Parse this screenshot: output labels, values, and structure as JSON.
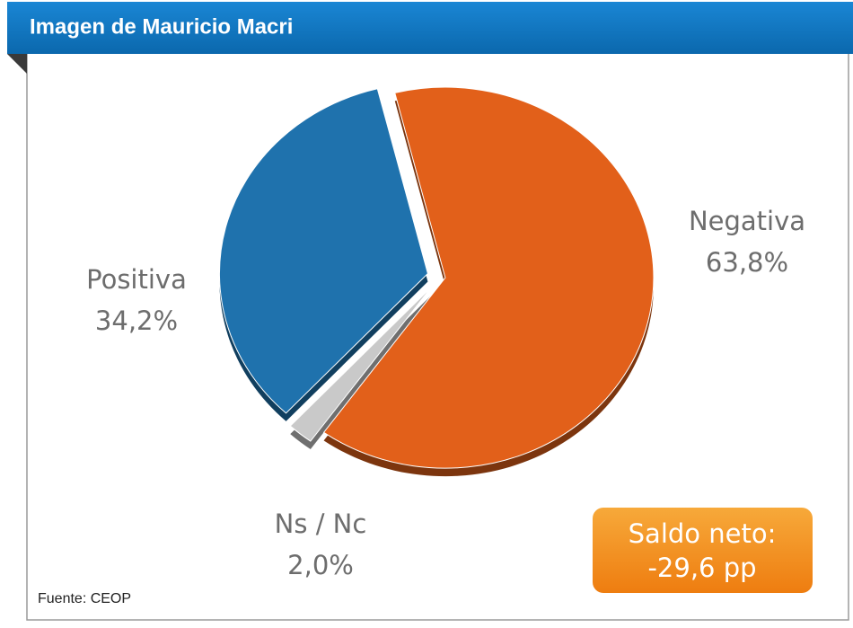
{
  "chart_data": {
    "type": "pie",
    "title": "Imagen de Mauricio Macri",
    "categories": [
      "Negativa",
      "Ns / Nc",
      "Positiva"
    ],
    "values": [
      63.8,
      2.0,
      34.2
    ],
    "value_labels": [
      "63,8%",
      "2,0%",
      "34,2%"
    ],
    "colors": [
      "#e2601a",
      "#c9c9c9",
      "#1f72ad"
    ],
    "annotation": {
      "title": "Saldo neto:",
      "text": "-29,6 pp"
    },
    "source": "Fuente: CEOP"
  }
}
